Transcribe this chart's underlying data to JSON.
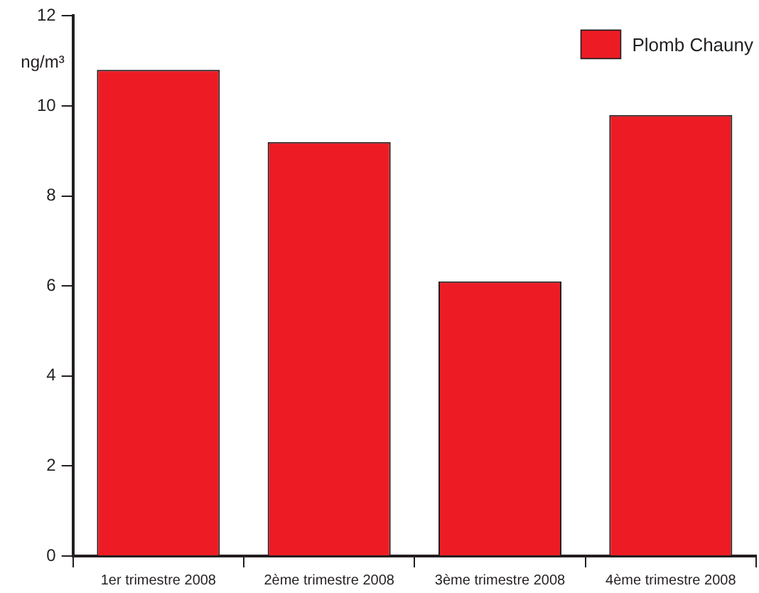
{
  "chart_data": {
    "type": "bar",
    "ylabel": "ng/m³",
    "categories": [
      "1er trimestre 2008",
      "2ème trimestre 2008",
      "3ème trimestre 2008",
      "4ème trimestre 2008"
    ],
    "series": [
      {
        "name": "Plomb Chauny",
        "color": "#ed1c24",
        "values": [
          10.8,
          9.2,
          6.1,
          9.8
        ]
      }
    ],
    "ylim": [
      0,
      12
    ],
    "yticks": [
      0,
      2,
      4,
      6,
      8,
      10,
      12
    ],
    "grid": false,
    "legend": "top right"
  }
}
